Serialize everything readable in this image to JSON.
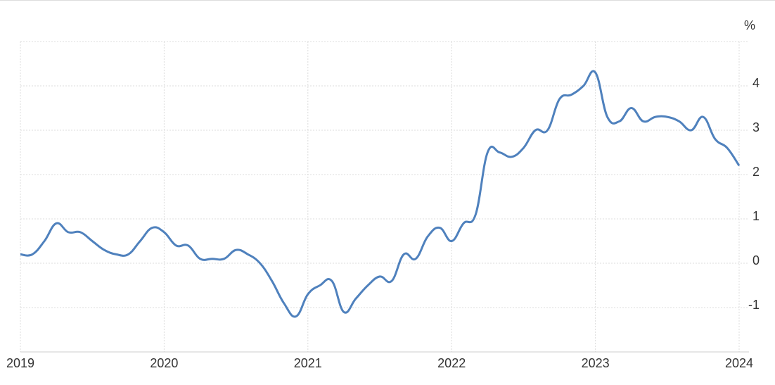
{
  "chart_data": {
    "type": "line",
    "unit_label": "%",
    "x": [
      2019,
      2019.083,
      2019.167,
      2019.25,
      2019.333,
      2019.417,
      2019.5,
      2019.583,
      2019.667,
      2019.75,
      2019.833,
      2019.917,
      2020,
      2020.083,
      2020.167,
      2020.25,
      2020.333,
      2020.417,
      2020.5,
      2020.583,
      2020.667,
      2020.75,
      2020.833,
      2020.917,
      2021,
      2021.083,
      2021.167,
      2021.25,
      2021.333,
      2021.417,
      2021.5,
      2021.583,
      2021.667,
      2021.75,
      2021.833,
      2021.917,
      2022,
      2022.083,
      2022.167,
      2022.25,
      2022.333,
      2022.417,
      2022.5,
      2022.583,
      2022.667,
      2022.75,
      2022.833,
      2022.917,
      2023,
      2023.083,
      2023.167,
      2023.25,
      2023.333,
      2023.417,
      2023.5,
      2023.583,
      2023.667,
      2023.75,
      2023.833,
      2023.917,
      2024
    ],
    "series": [
      {
        "color": "#4f81bd",
        "values": [
          0.2,
          0.2,
          0.5,
          0.9,
          0.7,
          0.7,
          0.5,
          0.3,
          0.2,
          0.2,
          0.5,
          0.8,
          0.7,
          0.4,
          0.4,
          0.1,
          0.1,
          0.1,
          0.3,
          0.2,
          0.0,
          -0.4,
          -0.9,
          -1.2,
          -0.7,
          -0.5,
          -0.4,
          -1.1,
          -0.8,
          -0.5,
          -0.3,
          -0.4,
          0.2,
          0.1,
          0.6,
          0.8,
          0.5,
          0.9,
          1.1,
          2.5,
          2.5,
          2.4,
          2.6,
          3.0,
          3.0,
          3.7,
          3.8,
          4.0,
          4.3,
          3.3,
          3.2,
          3.5,
          3.2,
          3.3,
          3.3,
          3.2,
          3.0,
          3.3,
          2.8,
          2.6,
          2.2
        ]
      }
    ],
    "xlim": [
      2019,
      2024
    ],
    "xticks": [
      2019,
      2020,
      2021,
      2022,
      2023,
      2024
    ],
    "ylim": [
      -2,
      5
    ],
    "yticks": [
      -1,
      0,
      1,
      2,
      3,
      4
    ],
    "grid": true
  }
}
